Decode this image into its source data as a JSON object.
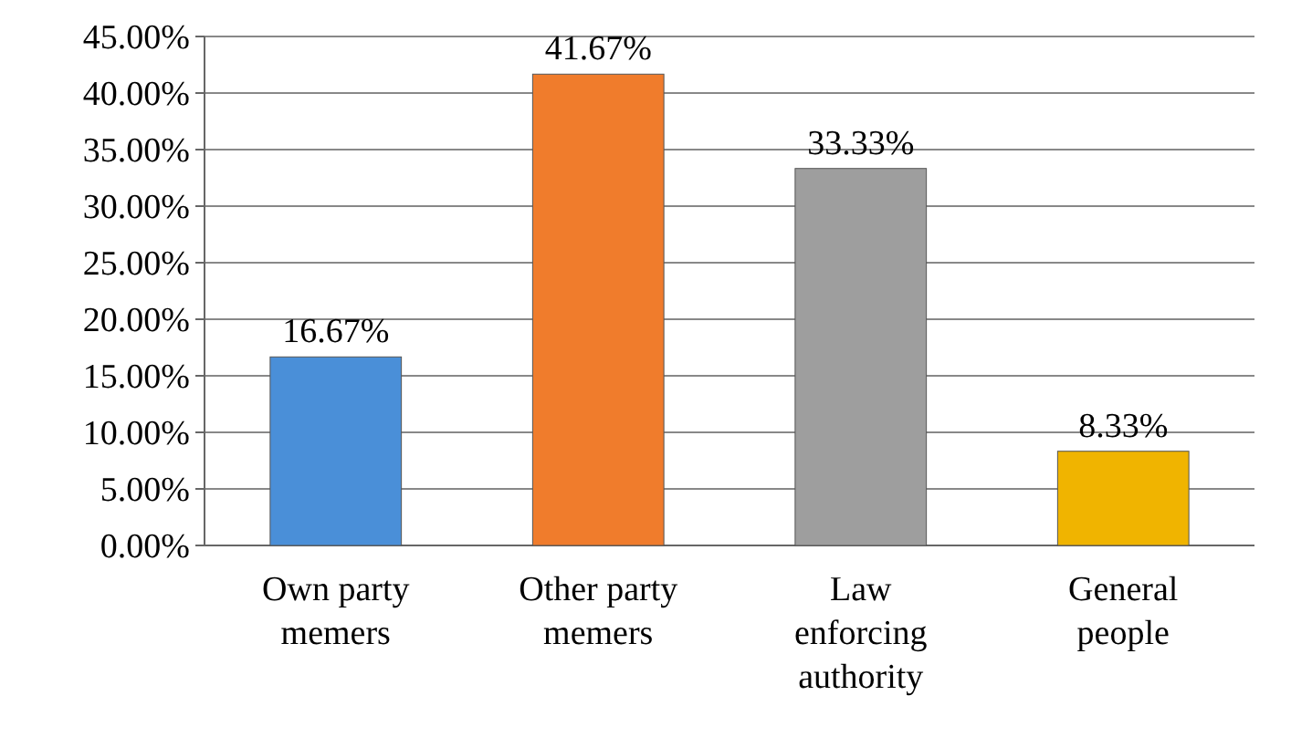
{
  "chart_data": {
    "type": "bar",
    "categories": [
      "Own party memers",
      "Other party memers",
      "Law enforcing authority",
      "General people"
    ],
    "values": [
      16.67,
      41.67,
      33.33,
      8.33
    ],
    "colors": [
      "#4a8fd8",
      "#f07c2c",
      "#9e9e9e",
      "#f0b400"
    ],
    "value_labels": [
      "16.67%",
      "41.67%",
      "33.33%",
      "8.33%"
    ],
    "ylim": [
      0,
      45
    ],
    "yticks": [
      {
        "value": 0,
        "label": "0.00%"
      },
      {
        "value": 5,
        "label": "5.00%"
      },
      {
        "value": 10,
        "label": "10.00%"
      },
      {
        "value": 15,
        "label": "15.00%"
      },
      {
        "value": 20,
        "label": "20.00%"
      },
      {
        "value": 25,
        "label": "25.00%"
      },
      {
        "value": 30,
        "label": "30.00%"
      },
      {
        "value": 35,
        "label": "35.00%"
      },
      {
        "value": 40,
        "label": "40.00%"
      },
      {
        "value": 45,
        "label": "45.00%"
      }
    ],
    "grid": true
  }
}
